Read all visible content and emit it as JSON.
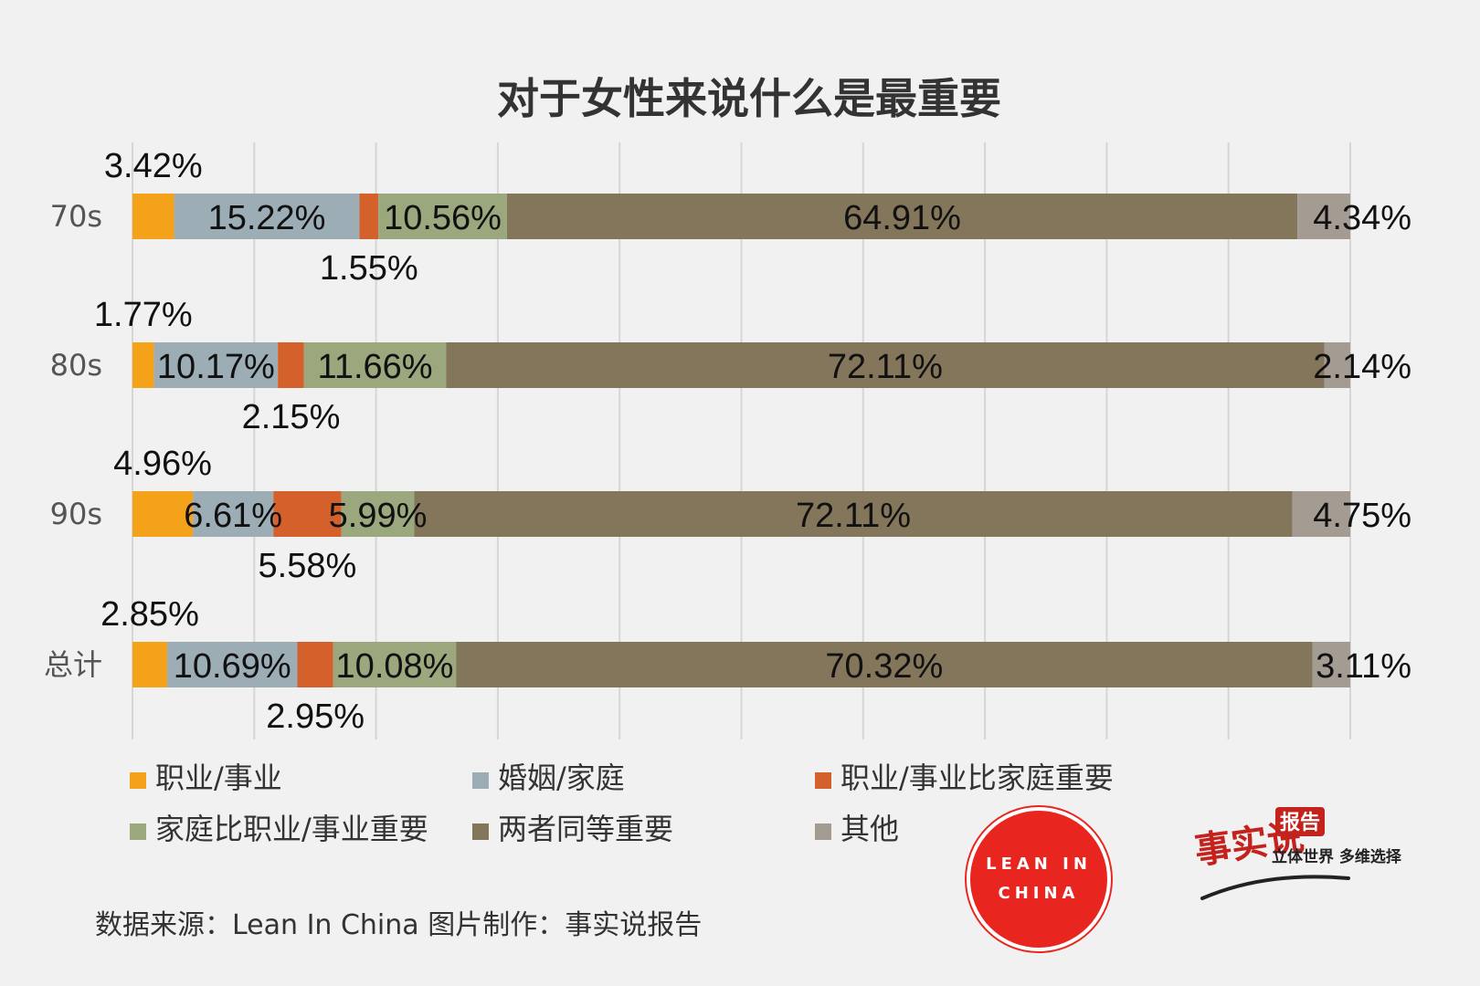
{
  "title": "对于女性来说什么是最重要",
  "footer": "数据来源：Lean In China  图片制作：事实说报告",
  "logos": {
    "lean_in_line1": "LEAN IN",
    "lean_in_line2": "CHINA",
    "shishi_main": "事实说",
    "shishi_badge": "报告",
    "shishi_tagline": "立体世界 多维选择"
  },
  "colors": {
    "background": "#f1f1f1",
    "grid": "#d6d6d6",
    "logo_red": "#e8261f"
  },
  "chart_data": {
    "type": "bar",
    "orientation": "horizontal",
    "stacked": true,
    "stack_mode": "percent",
    "xlim": [
      0,
      100
    ],
    "grid": true,
    "legend_position": "bottom",
    "categories": [
      "70s",
      "80s",
      "90s",
      "总计"
    ],
    "series": [
      {
        "name": "职业/事业",
        "color": "#f5a21b",
        "values": [
          3.42,
          1.77,
          4.96,
          2.85
        ],
        "labels": [
          "3.42%",
          "1.77%",
          "4.96%",
          "2.85%"
        ],
        "label_pos": [
          "above",
          "above",
          "above",
          "above"
        ]
      },
      {
        "name": "婚姻/家庭",
        "color": "#9cadb5",
        "values": [
          15.22,
          10.17,
          6.61,
          10.69
        ],
        "labels": [
          "15.22%",
          "10.17%",
          "6.61%",
          "10.69%"
        ],
        "label_pos": [
          "inside",
          "inside",
          "inside",
          "inside"
        ]
      },
      {
        "name": "职业/事业比家庭重要",
        "color": "#d4612b",
        "values": [
          1.55,
          2.15,
          5.58,
          2.95
        ],
        "labels": [
          "1.55%",
          "2.15%",
          "5.58%",
          "2.95%"
        ],
        "label_pos": [
          "below",
          "below",
          "below",
          "below"
        ]
      },
      {
        "name": "家庭比职业/事业重要",
        "color": "#9ba77d",
        "values": [
          10.56,
          11.66,
          5.99,
          10.08
        ],
        "labels": [
          "10.56%",
          "11.66%",
          "5.99%",
          "10.08%"
        ],
        "label_pos": [
          "inside",
          "inside",
          "inside",
          "inside"
        ]
      },
      {
        "name": "两者同等重要",
        "color": "#84765a",
        "values": [
          64.91,
          72.11,
          72.11,
          70.32
        ],
        "labels": [
          "64.91%",
          "72.11%",
          "72.11%",
          "70.32%"
        ],
        "label_pos": [
          "inside",
          "inside",
          "inside",
          "inside"
        ]
      },
      {
        "name": "其他",
        "color": "#a49b92",
        "values": [
          4.34,
          2.14,
          4.75,
          3.11
        ],
        "labels": [
          "4.34%",
          "2.14%",
          "4.75%",
          "3.11%"
        ],
        "label_pos": [
          "inside",
          "inside",
          "inside",
          "inside"
        ]
      }
    ]
  }
}
